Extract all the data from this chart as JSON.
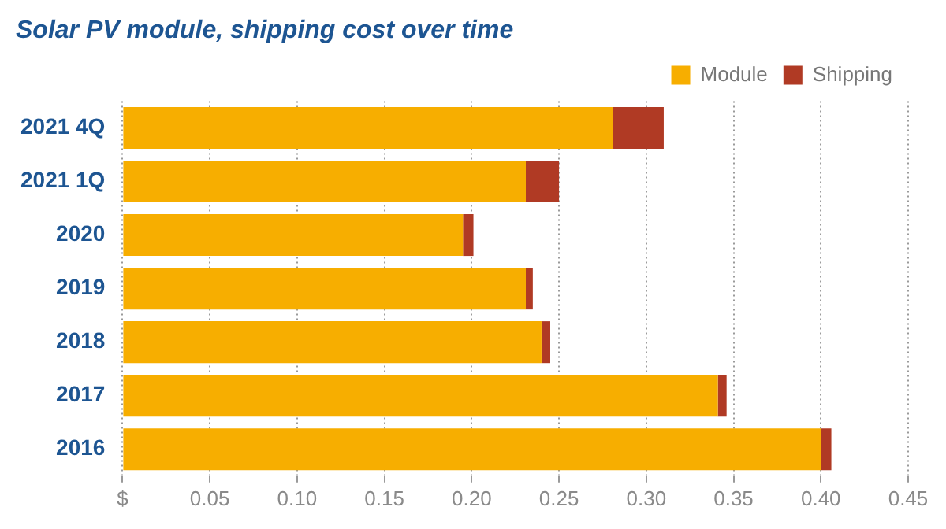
{
  "chart_data": {
    "type": "bar",
    "orientation": "horizontal",
    "stacked": true,
    "title": "Solar PV module, shipping cost over time",
    "categories": [
      "2021 4Q",
      "2021 1Q",
      "2020",
      "2019",
      "2018",
      "2017",
      "2016"
    ],
    "series": [
      {
        "name": "Module",
        "color": "#f7ae00",
        "values": [
          0.281,
          0.231,
          0.195,
          0.231,
          0.24,
          0.341,
          0.4
        ]
      },
      {
        "name": "Shipping",
        "color": "#b03a24",
        "values": [
          0.029,
          0.019,
          0.006,
          0.004,
          0.005,
          0.005,
          0.006
        ]
      }
    ],
    "xlim": [
      0,
      0.45
    ],
    "xticks": [
      {
        "value": 0,
        "label": "$"
      },
      0.05,
      {
        "value": 0.1,
        "label": "0.10"
      },
      0.15,
      {
        "value": 0.2,
        "label": "0.20"
      },
      0.25,
      {
        "value": 0.3,
        "label": "0.30"
      },
      0.35,
      {
        "value": 0.4,
        "label": "0.40"
      },
      0.45
    ],
    "grid": "x",
    "legend": "top right"
  }
}
